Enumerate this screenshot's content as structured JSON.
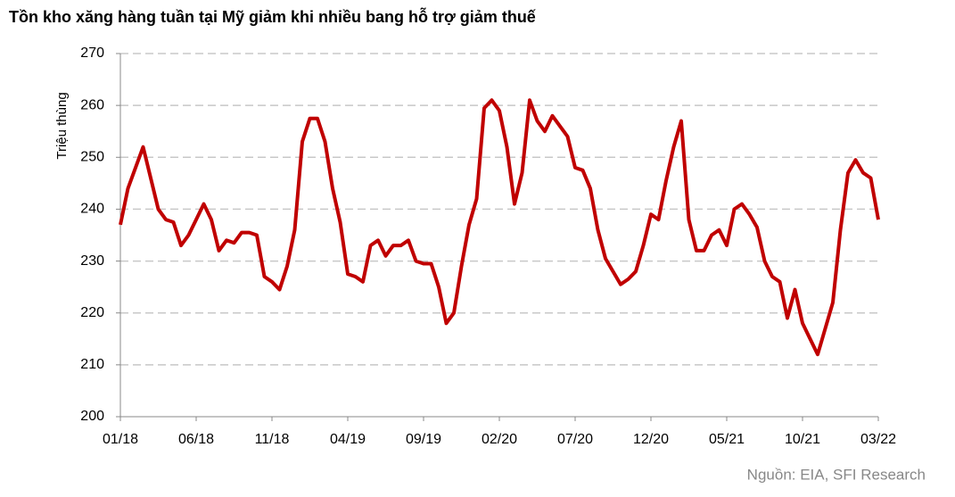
{
  "chart_data": {
    "type": "line",
    "title": "Tồn kho xăng hàng tuần tại Mỹ giảm khi nhiều bang hỗ trợ giảm thuế",
    "y_label": "Triệu thùng",
    "source": "Nguồn: EIA,  SFI Research",
    "categories": [
      "01/18",
      null,
      null,
      null,
      null,
      null,
      null,
      null,
      null,
      null,
      "06/18",
      null,
      null,
      null,
      null,
      null,
      null,
      null,
      null,
      null,
      "11/18",
      null,
      null,
      null,
      null,
      null,
      null,
      null,
      null,
      null,
      "04/19",
      null,
      null,
      null,
      null,
      null,
      null,
      null,
      null,
      null,
      "09/19",
      null,
      null,
      null,
      null,
      null,
      null,
      null,
      null,
      null,
      "02/20",
      null,
      null,
      null,
      null,
      null,
      null,
      null,
      null,
      null,
      "07/20",
      null,
      null,
      null,
      null,
      null,
      null,
      null,
      null,
      null,
      "12/20",
      null,
      null,
      null,
      null,
      null,
      null,
      null,
      null,
      null,
      "05/21",
      null,
      null,
      null,
      null,
      null,
      null,
      null,
      null,
      null,
      "10/21",
      null,
      null,
      null,
      null,
      null,
      null,
      null,
      null,
      null,
      "03/22"
    ],
    "values": [
      237,
      244,
      248,
      252,
      246,
      240,
      238,
      237.5,
      233,
      235,
      238,
      241,
      238,
      232,
      234,
      233.5,
      235.5,
      235.5,
      235,
      227,
      226,
      224.5,
      229,
      236,
      253,
      257.5,
      257.5,
      253,
      244,
      237.5,
      227.5,
      227,
      226,
      233,
      234,
      231,
      233,
      233,
      234,
      230,
      229.5,
      229.5,
      225,
      218,
      220,
      229,
      237,
      242,
      259.5,
      261,
      259,
      252,
      241,
      247,
      261,
      257,
      255,
      258,
      256,
      254,
      248,
      247.5,
      244,
      236,
      230.5,
      228,
      225.5,
      226.5,
      228,
      233,
      239,
      238,
      245.5,
      252,
      257,
      238,
      232,
      232,
      235,
      236,
      233,
      240,
      241,
      239,
      236.5,
      230,
      227,
      226,
      219,
      224.5,
      218,
      215,
      212,
      217,
      222,
      236,
      247,
      249.5,
      247,
      246,
      238
    ],
    "color": "#c00000",
    "ylim": [
      200,
      270
    ],
    "yticks": [
      200,
      210,
      220,
      230,
      240,
      250,
      260,
      270
    ],
    "grid": true
  }
}
